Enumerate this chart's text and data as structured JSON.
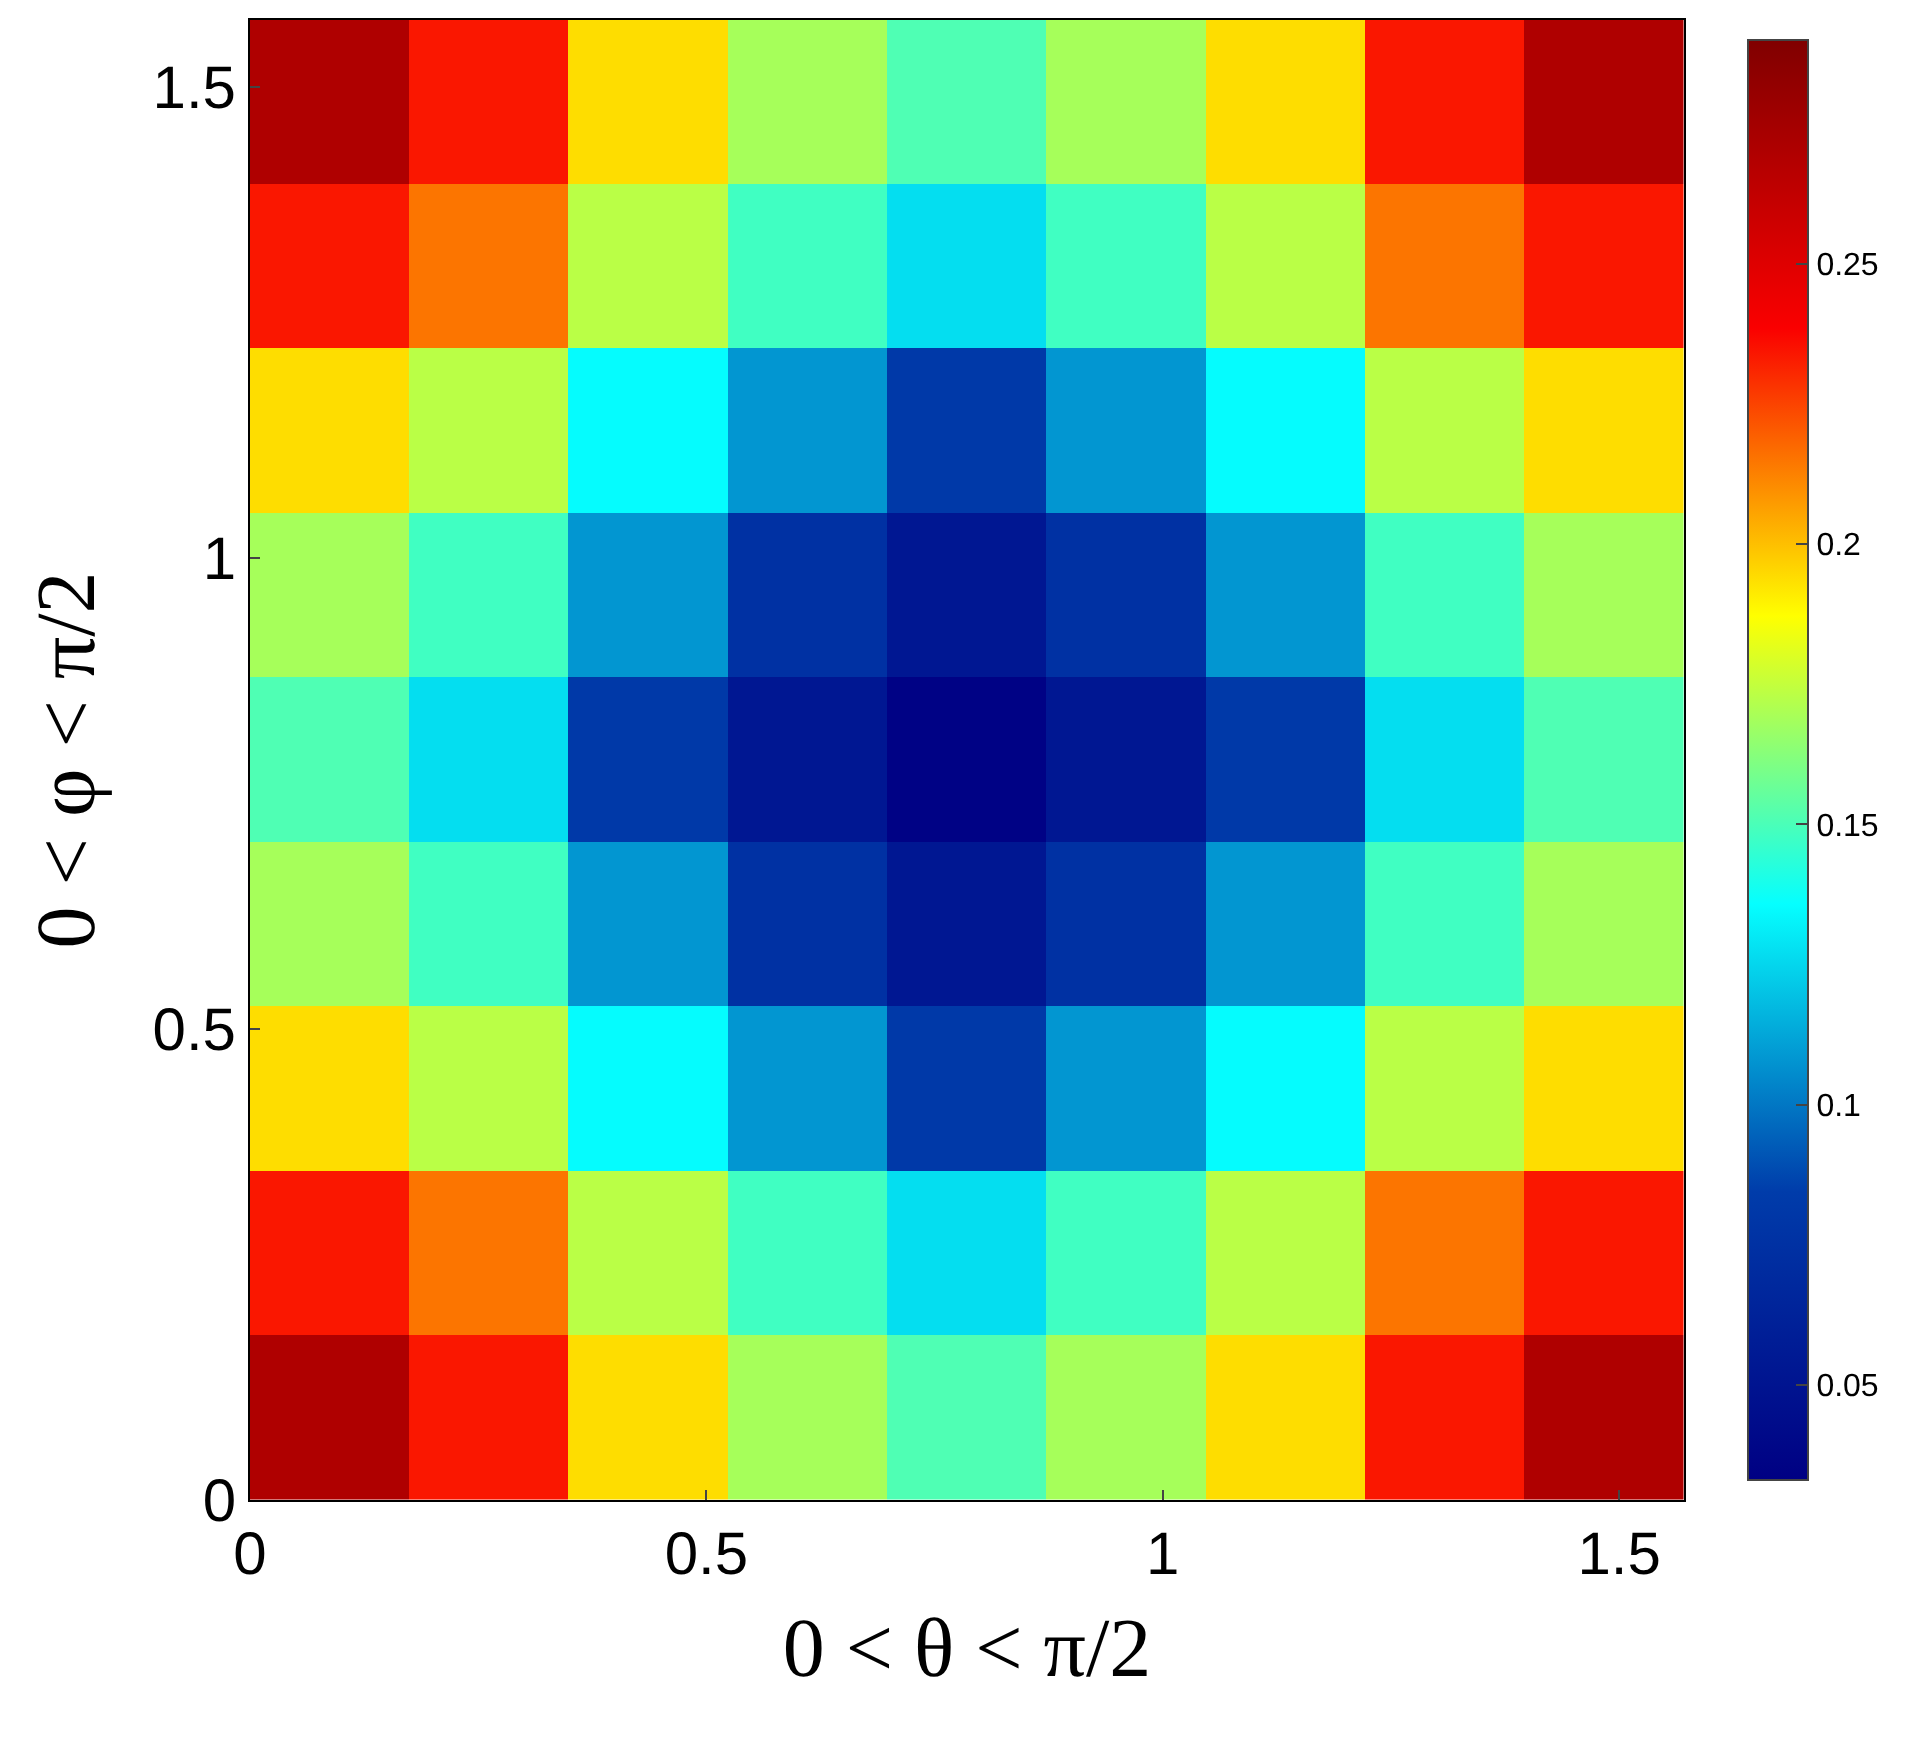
{
  "chart_data": {
    "type": "heatmap",
    "xlabel": "0 < θ < π/2",
    "ylabel": "0 < φ < π/2",
    "x": [
      0.087,
      0.262,
      0.436,
      0.611,
      0.785,
      0.96,
      1.134,
      1.309,
      1.484
    ],
    "y": [
      1.484,
      1.309,
      1.134,
      0.96,
      0.785,
      0.611,
      0.436,
      0.262,
      0.087
    ],
    "cells": [
      [
        0.27,
        0.234,
        0.194,
        0.169,
        0.151,
        0.169,
        0.194,
        0.234,
        0.27
      ],
      [
        0.234,
        0.215,
        0.173,
        0.148,
        0.127,
        0.148,
        0.173,
        0.215,
        0.234
      ],
      [
        0.194,
        0.173,
        0.135,
        0.108,
        0.082,
        0.108,
        0.135,
        0.173,
        0.194
      ],
      [
        0.169,
        0.148,
        0.108,
        0.075,
        0.053,
        0.075,
        0.108,
        0.148,
        0.169
      ],
      [
        0.151,
        0.127,
        0.082,
        0.053,
        0.035,
        0.053,
        0.082,
        0.127,
        0.151
      ],
      [
        0.169,
        0.148,
        0.108,
        0.075,
        0.053,
        0.075,
        0.108,
        0.148,
        0.169
      ],
      [
        0.194,
        0.173,
        0.135,
        0.108,
        0.082,
        0.108,
        0.135,
        0.173,
        0.194
      ],
      [
        0.234,
        0.215,
        0.173,
        0.148,
        0.127,
        0.148,
        0.173,
        0.215,
        0.234
      ],
      [
        0.27,
        0.234,
        0.194,
        0.169,
        0.151,
        0.169,
        0.194,
        0.234,
        0.27
      ]
    ],
    "xlim": [
      0,
      1.571
    ],
    "ylim": [
      0,
      1.571
    ],
    "xticks": [
      0,
      0.5,
      1,
      1.5
    ],
    "yticks": [
      0,
      0.5,
      1,
      1.5
    ],
    "clim": [
      0.033,
      0.29
    ],
    "cticks": [
      0.05,
      0.1,
      0.15,
      0.2,
      0.25
    ]
  }
}
